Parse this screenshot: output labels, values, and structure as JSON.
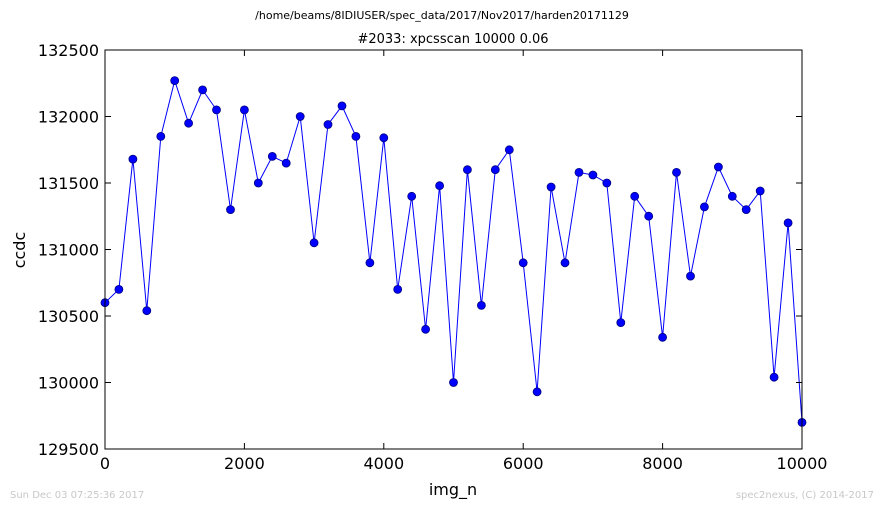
{
  "header": {
    "path": "/home/beams/8IDIUSER/spec_data/2017/Nov2017/harden20171129",
    "title": "#2033: xpcsscan 10000 0.06"
  },
  "footer": {
    "timestamp": "Sun Dec 03 07:25:36 2017",
    "credit": "spec2nexus, (C) 2014-2017"
  },
  "chart_data": {
    "type": "line",
    "title": "#2033: xpcsscan 10000 0.06",
    "xlabel": "img_n",
    "ylabel": "ccdc",
    "xlim": [
      0,
      10000
    ],
    "ylim": [
      129500,
      132500
    ],
    "xticks": [
      0,
      2000,
      4000,
      6000,
      8000,
      10000
    ],
    "yticks": [
      129500,
      130000,
      130500,
      131000,
      131500,
      132000,
      132500
    ],
    "marker": "circle",
    "color": "#0000ff",
    "grid": false,
    "series": [
      {
        "x": [
          0,
          200,
          400,
          600,
          800,
          1000,
          1200,
          1400,
          1600,
          1800,
          2000,
          2200,
          2400,
          2600,
          2800,
          3000,
          3200,
          3400,
          3600,
          3800,
          4000,
          4200,
          4400,
          4600,
          4800,
          5000,
          5200,
          5400,
          5600,
          5800,
          6000,
          6200,
          6400,
          6600,
          6800,
          7000,
          7200,
          7400,
          7600,
          7800,
          8000,
          8200,
          8400,
          8600,
          8800,
          9000,
          9200,
          9400,
          9600,
          9800,
          10000
        ],
        "y": [
          130600,
          130700,
          131680,
          130540,
          131850,
          132270,
          131950,
          132200,
          132050,
          131300,
          132050,
          131500,
          131700,
          131650,
          132000,
          131050,
          131940,
          132080,
          131850,
          130900,
          131840,
          130700,
          131400,
          130400,
          131480,
          130000,
          131600,
          130580,
          131600,
          131750,
          130900,
          129930,
          131470,
          130900,
          131580,
          131560,
          131500,
          130450,
          131400,
          131250,
          130340,
          131580,
          130800,
          131320,
          131620,
          131400,
          131300,
          131440,
          130040,
          131200,
          129700
        ]
      }
    ]
  }
}
